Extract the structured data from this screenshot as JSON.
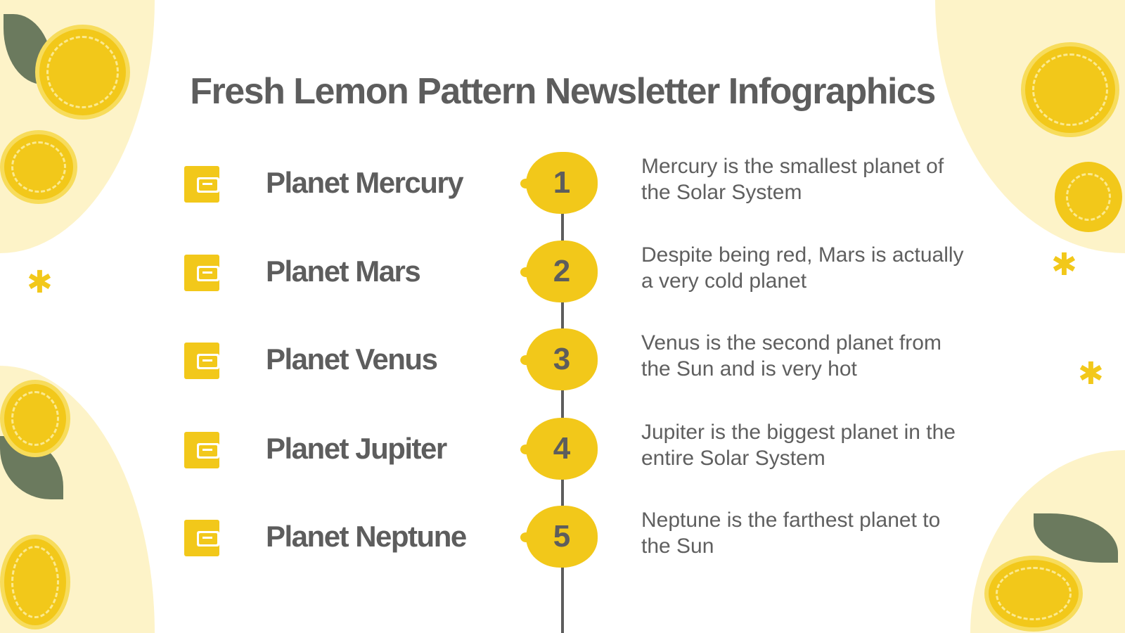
{
  "title": "Fresh Lemon Pattern Newsletter Infographics",
  "colors": {
    "accent": "#f2c81a",
    "text": "#5d5d5d",
    "background_blob": "#fdf3c8"
  },
  "items": [
    {
      "number": "1",
      "name": "Planet Mercury",
      "description": "Mercury is the smallest planet of the Solar System",
      "icon": "browser-chat-icon"
    },
    {
      "number": "2",
      "name": "Planet Mars",
      "description": "Despite being red, Mars is actually a very cold planet",
      "icon": "phone-mail-icon"
    },
    {
      "number": "3",
      "name": "Planet Venus",
      "description": "Venus is the second planet from the Sun and is very hot",
      "icon": "laptop-chat-icon"
    },
    {
      "number": "4",
      "name": "Planet Jupiter",
      "description": "Jupiter is the biggest planet in the entire Solar System",
      "icon": "walkie-talkie-icon"
    },
    {
      "number": "5",
      "name": "Planet Neptune",
      "description": "Neptune is the farthest planet to the Sun",
      "icon": "smile-chat-icon"
    }
  ]
}
